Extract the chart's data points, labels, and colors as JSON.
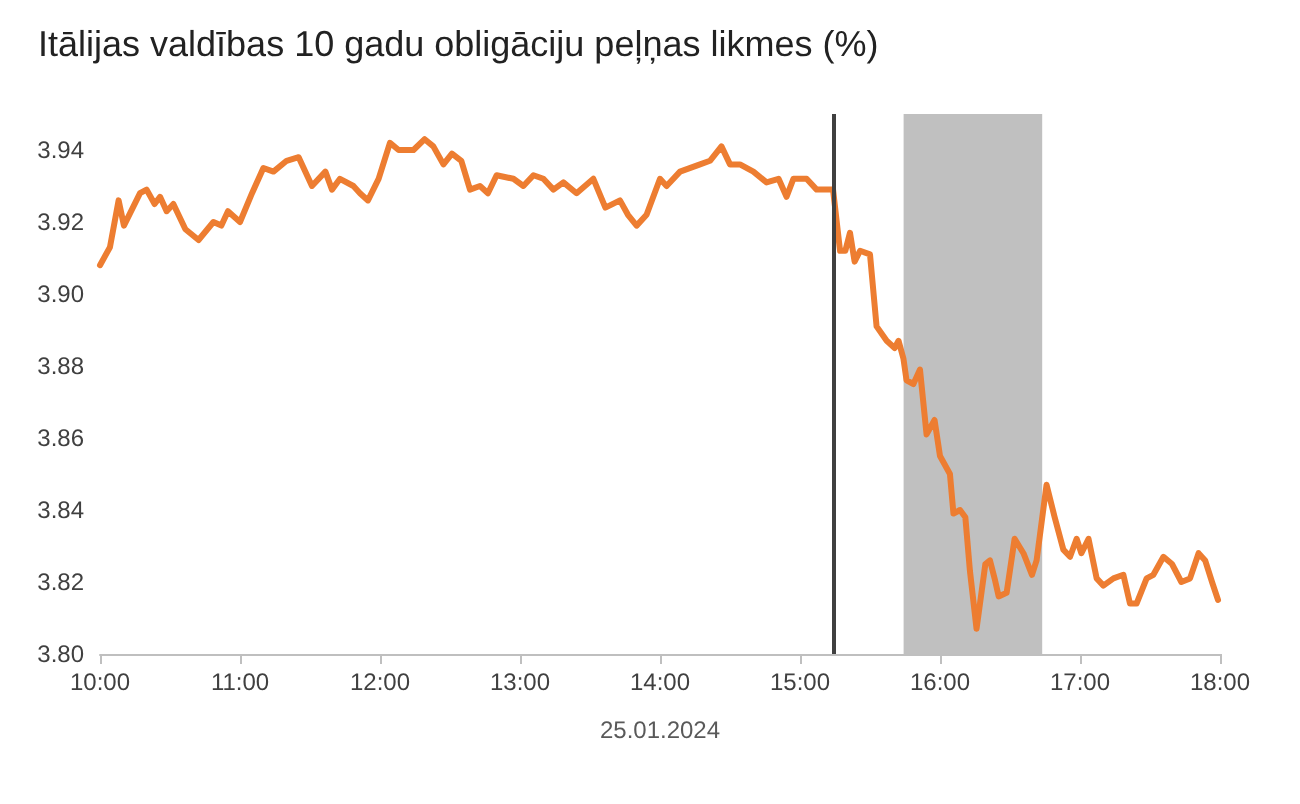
{
  "chart_data": {
    "type": "line",
    "title": "Itālijas valdības 10 gadu obligāciju peļņas likmes (%)",
    "xlabel": "25.01.2024",
    "x": [
      10.0,
      10.071,
      10.133,
      10.171,
      10.286,
      10.333,
      10.39,
      10.429,
      10.476,
      10.524,
      10.61,
      10.704,
      10.81,
      10.867,
      10.914,
      11.0,
      11.086,
      11.167,
      11.239,
      11.333,
      11.419,
      11.514,
      11.61,
      11.657,
      11.714,
      11.81,
      11.857,
      11.914,
      11.99,
      12.071,
      12.133,
      12.239,
      12.319,
      12.381,
      12.453,
      12.514,
      12.581,
      12.643,
      12.714,
      12.771,
      12.833,
      12.953,
      13.024,
      13.096,
      13.167,
      13.239,
      13.31,
      13.404,
      13.524,
      13.61,
      13.714,
      13.771,
      13.833,
      13.904,
      14.0,
      14.047,
      14.143,
      14.286,
      14.357,
      14.439,
      14.5,
      14.571,
      14.667,
      14.761,
      14.847,
      14.904,
      14.953,
      15.047,
      15.119,
      15.236,
      15.286,
      15.324,
      15.357,
      15.39,
      15.429,
      15.5,
      15.547,
      15.619,
      15.676,
      15.704,
      15.739,
      15.761,
      15.81,
      15.857,
      15.904,
      15.961,
      16.0,
      16.071,
      16.096,
      16.143,
      16.181,
      16.214,
      16.261,
      16.324,
      16.357,
      16.39,
      16.419,
      16.476,
      16.533,
      16.596,
      16.657,
      16.69,
      16.761,
      16.819,
      16.881,
      16.929,
      16.976,
      17.01,
      17.061,
      17.119,
      17.167,
      17.239,
      17.31,
      17.357,
      17.404,
      17.476,
      17.524,
      17.596,
      17.657,
      17.724,
      17.786,
      17.847,
      17.894,
      17.943,
      17.986
    ],
    "series": [
      {
        "color": "#ed7d31",
        "values": [
          3.908,
          3.913,
          3.926,
          3.919,
          3.928,
          3.929,
          3.925,
          3.927,
          3.923,
          3.925,
          3.918,
          3.915,
          3.92,
          3.919,
          3.923,
          3.92,
          3.928,
          3.935,
          3.934,
          3.937,
          3.938,
          3.93,
          3.934,
          3.929,
          3.932,
          3.93,
          3.928,
          3.926,
          3.932,
          3.942,
          3.94,
          3.94,
          3.943,
          3.941,
          3.936,
          3.939,
          3.937,
          3.929,
          3.93,
          3.928,
          3.933,
          3.932,
          3.93,
          3.933,
          3.932,
          3.929,
          3.931,
          3.928,
          3.932,
          3.924,
          3.926,
          3.922,
          3.919,
          3.922,
          3.932,
          3.93,
          3.934,
          3.936,
          3.937,
          3.941,
          3.936,
          3.936,
          3.934,
          3.931,
          3.932,
          3.927,
          3.932,
          3.932,
          3.929,
          3.929,
          3.912,
          3.912,
          3.917,
          3.909,
          3.912,
          3.911,
          3.891,
          3.887,
          3.885,
          3.887,
          3.882,
          3.876,
          3.875,
          3.879,
          3.861,
          3.865,
          3.855,
          3.85,
          3.839,
          3.84,
          3.838,
          3.823,
          3.807,
          3.825,
          3.826,
          3.821,
          3.816,
          3.817,
          3.832,
          3.828,
          3.822,
          3.826,
          3.847,
          3.838,
          3.829,
          3.827,
          3.832,
          3.828,
          3.832,
          3.821,
          3.819,
          3.821,
          3.822,
          3.814,
          3.814,
          3.821,
          3.822,
          3.827,
          3.825,
          3.82,
          3.821,
          3.828,
          3.826,
          3.82,
          3.815
        ]
      }
    ],
    "xlim": [
      10,
      18
    ],
    "xticks": [
      {
        "value": 10,
        "label": "10:00"
      },
      {
        "value": 11,
        "label": "11:00"
      },
      {
        "value": 12,
        "label": "12:00"
      },
      {
        "value": 13,
        "label": "13:00"
      },
      {
        "value": 14,
        "label": "14:00"
      },
      {
        "value": 15,
        "label": "15:00"
      },
      {
        "value": 16,
        "label": "16:00"
      },
      {
        "value": 17,
        "label": "17:00"
      },
      {
        "value": 18,
        "label": "18:00"
      }
    ],
    "ylim": [
      3.8,
      3.95
    ],
    "yticks": [
      {
        "value": 3.8,
        "label": "3.80"
      },
      3.82,
      3.84,
      3.86,
      3.88,
      {
        "value": 3.9,
        "label": "3.90"
      },
      3.92,
      3.94
    ],
    "ref_lines": [
      {
        "axis": "x",
        "value": 15.24,
        "color": "#404040"
      }
    ],
    "bands": [
      {
        "axis": "x",
        "from": 15.74,
        "to": 16.73,
        "color": "#c0c0c0"
      }
    ],
    "grid": false,
    "marker": "none",
    "line_style": "solid"
  }
}
